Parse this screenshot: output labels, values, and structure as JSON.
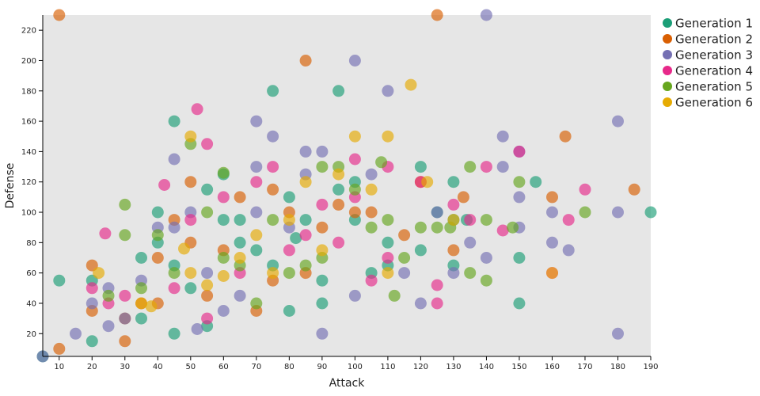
{
  "chart_data": {
    "type": "scatter",
    "xlabel": "Attack",
    "ylabel": "Defense",
    "xlim": [
      5,
      190
    ],
    "ylim": [
      5,
      230
    ],
    "x_ticks": [
      10,
      20,
      30,
      40,
      50,
      60,
      70,
      80,
      90,
      100,
      110,
      120,
      130,
      140,
      150,
      160,
      170,
      180,
      190
    ],
    "y_ticks": [
      20,
      40,
      60,
      80,
      100,
      120,
      140,
      160,
      180,
      200,
      220
    ],
    "background_color": "#e6e6e6",
    "point_opacity": 0.65,
    "legend_position": "top-right",
    "series": [
      {
        "name": "Generation 1",
        "color": "#1b9e77",
        "points": [
          [
            5,
            5
          ],
          [
            10,
            55
          ],
          [
            20,
            15
          ],
          [
            20,
            55
          ],
          [
            35,
            30
          ],
          [
            35,
            70
          ],
          [
            40,
            100
          ],
          [
            40,
            80
          ],
          [
            45,
            20
          ],
          [
            45,
            160
          ],
          [
            45,
            65
          ],
          [
            50,
            50
          ],
          [
            55,
            115
          ],
          [
            55,
            25
          ],
          [
            60,
            95
          ],
          [
            60,
            125
          ],
          [
            65,
            80
          ],
          [
            65,
            95
          ],
          [
            70,
            75
          ],
          [
            75,
            180
          ],
          [
            75,
            65
          ],
          [
            80,
            110
          ],
          [
            80,
            35
          ],
          [
            82,
            83
          ],
          [
            85,
            95
          ],
          [
            90,
            40
          ],
          [
            90,
            55
          ],
          [
            95,
            180
          ],
          [
            95,
            115
          ],
          [
            100,
            120
          ],
          [
            100,
            95
          ],
          [
            105,
            60
          ],
          [
            110,
            65
          ],
          [
            110,
            80
          ],
          [
            120,
            130
          ],
          [
            120,
            75
          ],
          [
            125,
            100
          ],
          [
            130,
            120
          ],
          [
            130,
            65
          ],
          [
            130,
            95
          ],
          [
            134,
            95
          ],
          [
            150,
            70
          ],
          [
            150,
            40
          ],
          [
            155,
            120
          ],
          [
            190,
            100
          ]
        ]
      },
      {
        "name": "Generation 2",
        "color": "#d95f02",
        "points": [
          [
            10,
            230
          ],
          [
            10,
            10
          ],
          [
            20,
            65
          ],
          [
            20,
            35
          ],
          [
            30,
            15
          ],
          [
            30,
            30
          ],
          [
            35,
            40
          ],
          [
            40,
            70
          ],
          [
            40,
            40
          ],
          [
            45,
            95
          ],
          [
            50,
            120
          ],
          [
            50,
            80
          ],
          [
            55,
            45
          ],
          [
            60,
            75
          ],
          [
            65,
            110
          ],
          [
            70,
            35
          ],
          [
            75,
            115
          ],
          [
            75,
            55
          ],
          [
            80,
            100
          ],
          [
            85,
            200
          ],
          [
            85,
            60
          ],
          [
            90,
            90
          ],
          [
            95,
            105
          ],
          [
            100,
            100
          ],
          [
            105,
            100
          ],
          [
            115,
            85
          ],
          [
            120,
            120
          ],
          [
            125,
            230
          ],
          [
            130,
            75
          ],
          [
            133,
            110
          ],
          [
            160,
            110
          ],
          [
            164,
            150
          ],
          [
            185,
            115
          ]
        ]
      },
      {
        "name": "Generation 3",
        "color": "#7570b3",
        "points": [
          [
            5,
            5
          ],
          [
            15,
            20
          ],
          [
            20,
            40
          ],
          [
            25,
            25
          ],
          [
            25,
            50
          ],
          [
            30,
            30
          ],
          [
            35,
            55
          ],
          [
            40,
            90
          ],
          [
            45,
            135
          ],
          [
            45,
            90
          ],
          [
            50,
            100
          ],
          [
            52,
            23
          ],
          [
            55,
            60
          ],
          [
            60,
            35
          ],
          [
            65,
            45
          ],
          [
            70,
            160
          ],
          [
            70,
            130
          ],
          [
            70,
            100
          ],
          [
            75,
            150
          ],
          [
            80,
            90
          ],
          [
            85,
            140
          ],
          [
            85,
            125
          ],
          [
            90,
            140
          ],
          [
            90,
            20
          ],
          [
            100,
            200
          ],
          [
            100,
            45
          ],
          [
            105,
            125
          ],
          [
            110,
            180
          ],
          [
            115,
            60
          ],
          [
            120,
            40
          ],
          [
            125,
            100
          ],
          [
            130,
            60
          ],
          [
            135,
            80
          ],
          [
            140,
            230
          ],
          [
            140,
            70
          ],
          [
            145,
            130
          ],
          [
            145,
            150
          ],
          [
            150,
            140
          ],
          [
            150,
            110
          ],
          [
            150,
            90
          ],
          [
            160,
            80
          ],
          [
            160,
            100
          ],
          [
            165,
            75
          ],
          [
            180,
            160
          ],
          [
            180,
            100
          ],
          [
            180,
            20
          ]
        ]
      },
      {
        "name": "Generation 4",
        "color": "#e7298a",
        "points": [
          [
            20,
            50
          ],
          [
            24,
            86
          ],
          [
            25,
            40
          ],
          [
            30,
            45
          ],
          [
            42,
            118
          ],
          [
            45,
            50
          ],
          [
            50,
            95
          ],
          [
            52,
            168
          ],
          [
            55,
            145
          ],
          [
            55,
            30
          ],
          [
            60,
            110
          ],
          [
            65,
            60
          ],
          [
            70,
            120
          ],
          [
            75,
            130
          ],
          [
            80,
            75
          ],
          [
            85,
            85
          ],
          [
            90,
            105
          ],
          [
            95,
            80
          ],
          [
            100,
            135
          ],
          [
            100,
            110
          ],
          [
            105,
            55
          ],
          [
            110,
            130
          ],
          [
            110,
            70
          ],
          [
            120,
            120
          ],
          [
            125,
            40
          ],
          [
            125,
            52
          ],
          [
            130,
            105
          ],
          [
            135,
            95
          ],
          [
            140,
            130
          ],
          [
            145,
            88
          ],
          [
            150,
            140
          ],
          [
            160,
            60
          ],
          [
            165,
            95
          ],
          [
            170,
            115
          ]
        ]
      },
      {
        "name": "Generation 5",
        "color": "#66a61e",
        "points": [
          [
            25,
            45
          ],
          [
            30,
            105
          ],
          [
            30,
            85
          ],
          [
            35,
            50
          ],
          [
            40,
            85
          ],
          [
            45,
            60
          ],
          [
            50,
            145
          ],
          [
            55,
            100
          ],
          [
            60,
            126
          ],
          [
            60,
            70
          ],
          [
            65,
            65
          ],
          [
            70,
            40
          ],
          [
            75,
            95
          ],
          [
            80,
            60
          ],
          [
            85,
            65
          ],
          [
            90,
            130
          ],
          [
            90,
            70
          ],
          [
            95,
            130
          ],
          [
            100,
            115
          ],
          [
            105,
            90
          ],
          [
            108,
            133
          ],
          [
            110,
            95
          ],
          [
            112,
            45
          ],
          [
            115,
            70
          ],
          [
            120,
            90
          ],
          [
            125,
            90
          ],
          [
            129,
            90
          ],
          [
            135,
            130
          ],
          [
            135,
            60
          ],
          [
            140,
            95
          ],
          [
            140,
            55
          ],
          [
            148,
            90
          ],
          [
            150,
            120
          ],
          [
            170,
            100
          ]
        ]
      },
      {
        "name": "Generation 6",
        "color": "#e6ab02",
        "points": [
          [
            22,
            60
          ],
          [
            35,
            40
          ],
          [
            38,
            38
          ],
          [
            48,
            76
          ],
          [
            50,
            150
          ],
          [
            50,
            60
          ],
          [
            55,
            52
          ],
          [
            60,
            58
          ],
          [
            65,
            70
          ],
          [
            70,
            85
          ],
          [
            75,
            60
          ],
          [
            80,
            95
          ],
          [
            85,
            120
          ],
          [
            90,
            75
          ],
          [
            95,
            125
          ],
          [
            100,
            150
          ],
          [
            105,
            115
          ],
          [
            110,
            150
          ],
          [
            110,
            60
          ],
          [
            117,
            184
          ],
          [
            122,
            120
          ],
          [
            130,
            95
          ],
          [
            160,
            60
          ]
        ]
      }
    ]
  }
}
